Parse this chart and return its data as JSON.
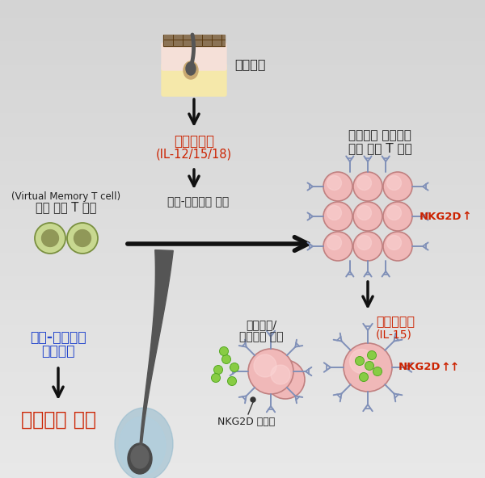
{
  "bg_top": "#e8e8e8",
  "bg_bottom": "#c8c8c8",
  "title_text1": "활성화된 세포독성",
  "title_text2": "가상 기억 T 세포",
  "hair_follicle_label": "모낭세포",
  "cytokine1_line1": "사이토카인",
  "cytokine1_line2": "(IL-12/15/18)",
  "vm_tcell_label": "가상 기억 T 세포",
  "vm_tcell_sub": "(Virtual Memory T cell)",
  "antigen_label": "항원-비특이적 자극",
  "nkg2d_up1_text": "NKG2D",
  "nkg2d_up1_arrow": "↑",
  "cytokine2_line1": "사이토카인",
  "cytokine2_line2": "(IL-15)",
  "nkg2d_up2_text": "NKG2D",
  "nkg2d_up2_arrows": "↑↑",
  "cytotox_line1": "세포독성/",
  "cytotox_line2": "염증물질 분비",
  "nkg2d_ligand": "NKG2D 리간드",
  "antigen_cyto1": "항원-비특이적",
  "antigen_cyto2": "세포독성",
  "alopecia_label": "원형탈모 유발",
  "skin_brown": "#8B7355",
  "skin_pink": "#f5e0d8",
  "skin_yellow": "#f5e8aa",
  "skin_tan": "#c8a870",
  "hair_color": "#555555",
  "cell_pink_fill": "#f0b8b8",
  "cell_pink_edge": "#c08080",
  "cell_green_fill": "#c8d890",
  "cell_green_edge": "#7a9040",
  "cell_green_inner": "#909858",
  "receptor_color": "#8090b8",
  "green_dot_color": "#88cc44",
  "green_dot_edge": "#55aa22",
  "text_red": "#cc2200",
  "text_blue": "#2244cc",
  "text_dark": "#222222",
  "arrow_color": "#111111",
  "sheath_color": "#90b8cc"
}
